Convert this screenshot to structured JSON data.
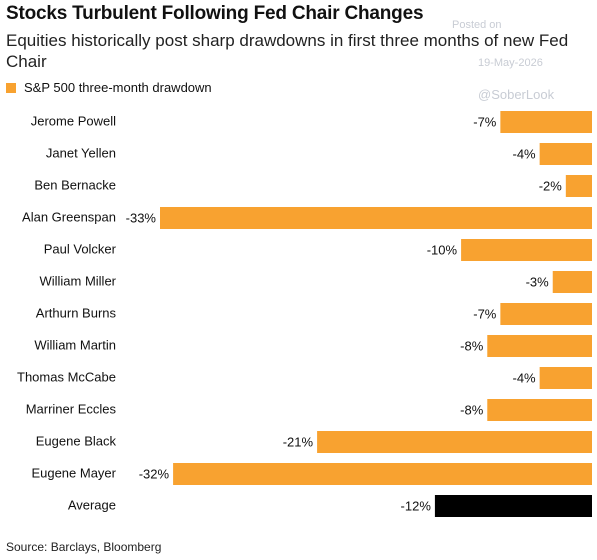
{
  "chart_data": {
    "type": "bar",
    "orientation": "horizontal",
    "title": "Stocks Turbulent Following Fed Chair Changes",
    "subtitle": "Equities historically post sharp drawdowns in first three months of new Fed Chair",
    "series_name": "S&P 500 three-month drawdown",
    "legend_color": "#f8a230",
    "categories": [
      "Jerome Powell",
      "Janet Yellen",
      "Ben Bernacke",
      "Alan Greenspan",
      "Paul Volcker",
      "William Miller",
      "Arthurn Burns",
      "William Martin",
      "Thomas McCabe",
      "Marriner Eccles",
      "Eugene Black",
      "Eugene Mayer",
      "Average"
    ],
    "values": [
      -7,
      -4,
      -2,
      -33,
      -10,
      -3,
      -7,
      -8,
      -4,
      -8,
      -21,
      -32,
      -12
    ],
    "value_labels": [
      "-7%",
      "-4%",
      "-2%",
      "-33%",
      "-10%",
      "-3%",
      "-7%",
      "-8%",
      "-4%",
      "-8%",
      "-21%",
      "-32%",
      "-12%"
    ],
    "colors": [
      "#f8a230",
      "#f8a230",
      "#f8a230",
      "#f8a230",
      "#f8a230",
      "#f8a230",
      "#f8a230",
      "#f8a230",
      "#f8a230",
      "#f8a230",
      "#f8a230",
      "#f8a230",
      "#000000"
    ],
    "xlim": [
      -33,
      0
    ],
    "source": "Source: Barclays, Bloomberg",
    "watermarks": [
      "Posted on",
      "19-May-2026",
      "@SoberLook"
    ]
  }
}
